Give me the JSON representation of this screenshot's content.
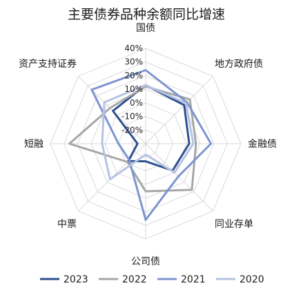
{
  "chart_data": {
    "type": "radar",
    "title": "主要债券品种余额同比增速",
    "categories": [
      "国债",
      "地方政府债",
      "金融债",
      "同业存单",
      "公司债",
      "中票",
      "短融",
      "资产支持证券"
    ],
    "r_ticks": [
      "40%",
      "30%",
      "20%",
      "10%",
      "0%",
      "-10%",
      "-20%"
    ],
    "rlim": [
      -30,
      40
    ],
    "grid": true,
    "legend_position": "bottom",
    "series": [
      {
        "name": "2023",
        "color": "#2f4f8f",
        "values": [
          13,
          10,
          2,
          -2,
          -17,
          -12,
          -24,
          4
        ]
      },
      {
        "name": "2022",
        "color": "#a6a6a6",
        "values": [
          12,
          16,
          7,
          18,
          5,
          -11,
          26,
          7
        ]
      },
      {
        "name": "2021",
        "color": "#7c94cf",
        "values": [
          24,
          13,
          18,
          4,
          26,
          -13,
          -10,
          26
        ]
      },
      {
        "name": "2020",
        "color": "#b4c3e2",
        "values": [
          13,
          12,
          5,
          0,
          -22,
          7,
          2,
          13
        ]
      }
    ]
  }
}
